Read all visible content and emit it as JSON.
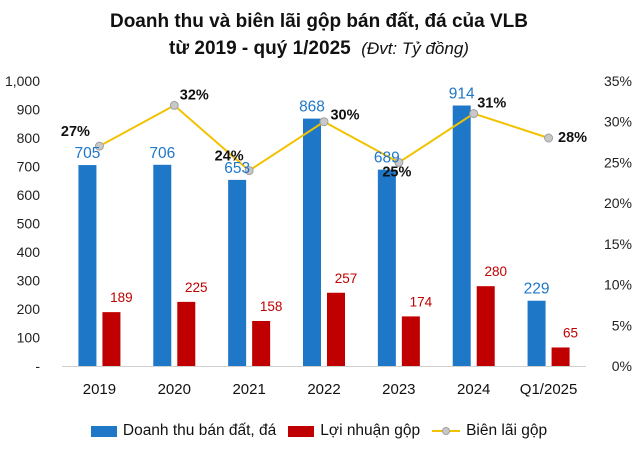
{
  "title_line1": "Doanh thu và biên lãi gộp bán đất, đá của VLB",
  "title_line2": "từ 2019 - quý 1/2025",
  "title_unit": "(Đvt: Tỷ đồng)",
  "colors": {
    "revenue": "#1f77c8",
    "profit": "#c00000",
    "margin": "#f2c200",
    "marker": "#c8c8c8"
  },
  "chart_data": {
    "type": "bar",
    "categories": [
      "2019",
      "2020",
      "2021",
      "2022",
      "2023",
      "2024",
      "Q1/2025"
    ],
    "series": [
      {
        "name": "Doanh thu bán đất, đá",
        "type": "bar",
        "axis": "left",
        "values": [
          705,
          706,
          653,
          868,
          689,
          914,
          229
        ],
        "labels": [
          "705",
          "706",
          "653",
          "868",
          "689",
          "914",
          "229"
        ]
      },
      {
        "name": "Lợi nhuận gộp",
        "type": "bar",
        "axis": "left",
        "values": [
          189,
          225,
          158,
          257,
          174,
          280,
          65
        ],
        "labels": [
          "189",
          "225",
          "158",
          "257",
          "174",
          "280",
          "65"
        ]
      },
      {
        "name": "Biên lãi gộp",
        "type": "line",
        "axis": "right",
        "values": [
          27,
          32,
          24,
          30,
          25,
          31,
          28
        ],
        "labels": [
          "27%",
          "32%",
          "24%",
          "30%",
          "25%",
          "31%",
          "28%"
        ]
      }
    ],
    "y_left": {
      "ylim": [
        0,
        1000
      ],
      "ticks": [
        "-",
        "100",
        "200",
        "300",
        "400",
        "500",
        "600",
        "700",
        "800",
        "900",
        "1,000"
      ]
    },
    "y_right": {
      "ylim": [
        0,
        35
      ],
      "ticks": [
        "0%",
        "5%",
        "10%",
        "15%",
        "20%",
        "25%",
        "30%",
        "35%"
      ]
    },
    "grid": false,
    "legend_position": "bottom"
  }
}
